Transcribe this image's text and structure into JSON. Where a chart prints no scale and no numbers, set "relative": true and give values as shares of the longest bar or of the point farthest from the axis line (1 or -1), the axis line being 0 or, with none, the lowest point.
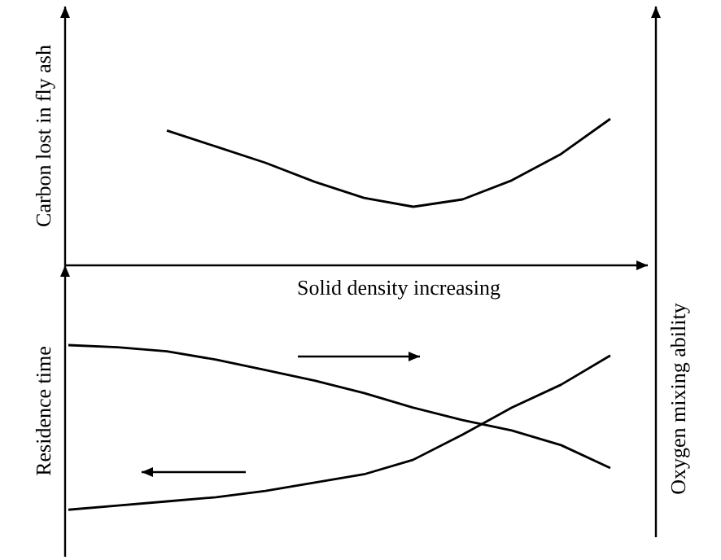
{
  "chart_data": [
    {
      "type": "line",
      "relative": true,
      "ylabel": "Carbon lost in fly ash",
      "xlabel": "Solid density increasing",
      "categories": [
        null,
        null,
        null,
        null,
        null,
        null,
        null,
        null,
        null,
        null,
        null,
        null
      ],
      "series": [
        {
          "color": "#000000",
          "values": [
            null,
            null,
            0.92,
            0.81,
            0.7,
            0.57,
            0.46,
            0.4,
            0.45,
            0.58,
            0.76,
            1.0
          ]
        }
      ]
    },
    {
      "type": "line",
      "relative": true,
      "ylabel": "Residence time",
      "y2label": "Oxygen mixing ability",
      "categories": [
        null,
        null,
        null,
        null,
        null,
        null,
        null,
        null,
        null,
        null,
        null,
        null
      ],
      "series": [
        {
          "color": "#000000",
          "values": [
            1.0,
            0.99,
            0.97,
            0.93,
            0.88,
            0.83,
            0.77,
            0.7,
            0.64,
            0.59,
            0.52,
            0.41
          ]
        },
        {
          "color": "#000000",
          "values": [
            0.21,
            0.23,
            0.25,
            0.27,
            0.3,
            0.34,
            0.38,
            0.45,
            0.57,
            0.7,
            0.81,
            0.95
          ]
        }
      ]
    }
  ]
}
